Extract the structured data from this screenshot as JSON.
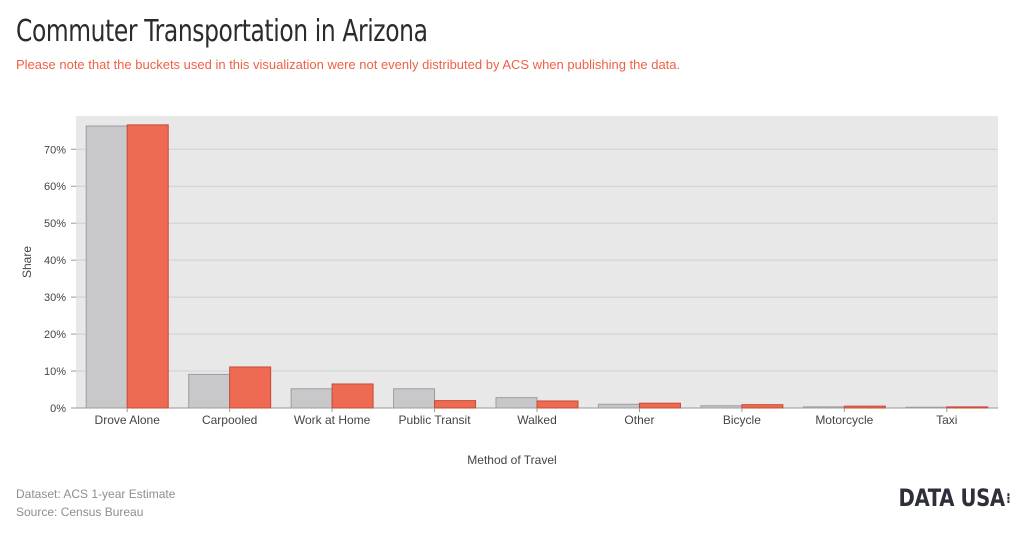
{
  "header": {
    "title": "Commuter Transportation in Arizona",
    "subtitle": "Please note that the buckets used in this visualization were not evenly distributed by ACS when publishing the data."
  },
  "footer": {
    "dataset": "Dataset: ACS 1-year Estimate",
    "source": "Source: Census Bureau",
    "logo": "DATA USA"
  },
  "colors": {
    "series_a": "#c8c8cb",
    "series_b": "#ef6a52",
    "plot_bg": "#e8e8e8",
    "grid": "#cfcfcf"
  },
  "chart_data": {
    "type": "bar",
    "xlabel": "Method of Travel",
    "ylabel": "Share",
    "ylim": [
      0,
      0.79
    ],
    "yticks": [
      0,
      0.1,
      0.2,
      0.3,
      0.4,
      0.5,
      0.6,
      0.7
    ],
    "ytick_labels": [
      "0%",
      "10%",
      "20%",
      "30%",
      "40%",
      "50%",
      "60%",
      "70%"
    ],
    "grid": true,
    "legend": "none",
    "categories": [
      "Drove Alone",
      "Carpooled",
      "Work at Home",
      "Public Transit",
      "Walked",
      "Other",
      "Bicycle",
      "Motorcycle",
      "Taxi"
    ],
    "series": [
      {
        "values": [
          0.763,
          0.091,
          0.052,
          0.052,
          0.028,
          0.01,
          0.006,
          0.003,
          0.002
        ]
      },
      {
        "values": [
          0.766,
          0.111,
          0.065,
          0.02,
          0.019,
          0.013,
          0.009,
          0.005,
          0.003
        ]
      }
    ]
  }
}
